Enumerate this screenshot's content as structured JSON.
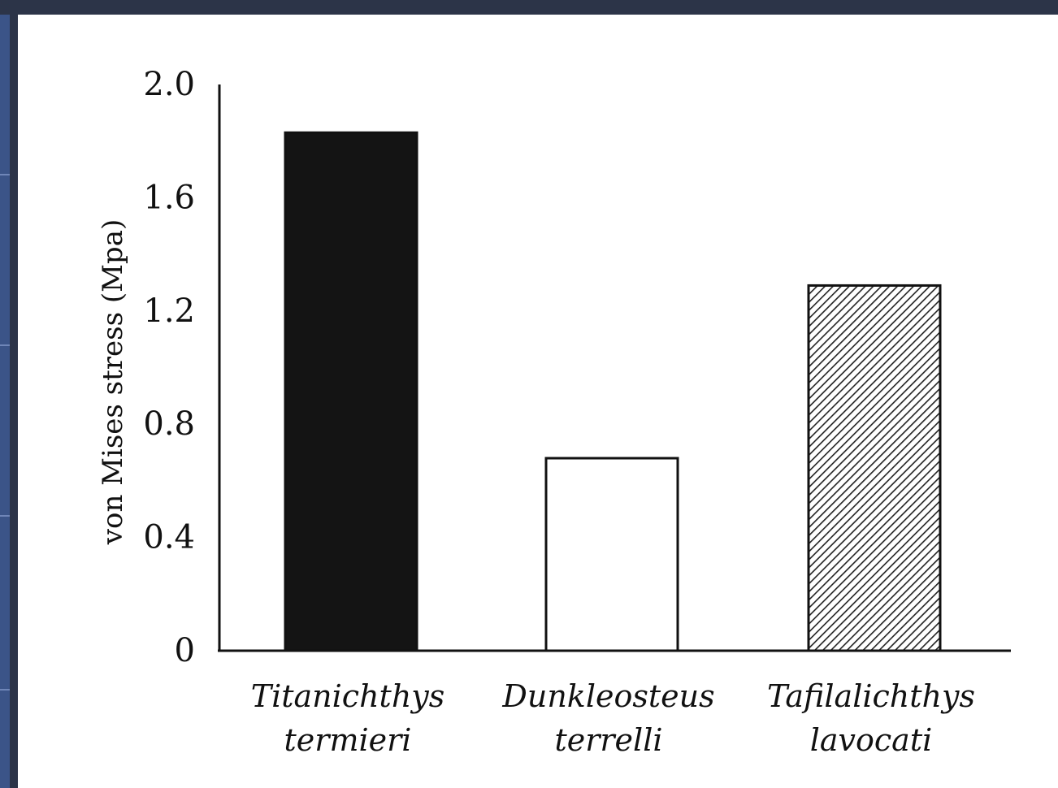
{
  "chart_data": {
    "type": "bar",
    "ylabel": "von Mises stress (Mpa)",
    "xlabel": "",
    "ylim": [
      0,
      2.0
    ],
    "yticks": [
      "0",
      "0.4",
      "0.8",
      "1.2",
      "1.6",
      "2.0"
    ],
    "yticks_values": [
      0,
      0.4,
      0.8,
      1.2,
      1.6,
      2.0
    ],
    "categories": [
      {
        "line1": "Titanichthys",
        "line2": "termieri"
      },
      {
        "line1": "Dunkleosteus",
        "line2": "terrelli"
      },
      {
        "line1": "Tafilalichthys",
        "line2": "lavocati"
      }
    ],
    "values": [
      1.83,
      0.68,
      1.29
    ],
    "fills": [
      "solid-black",
      "white",
      "diagonal-hatch"
    ],
    "grid": false,
    "legend": "none"
  }
}
